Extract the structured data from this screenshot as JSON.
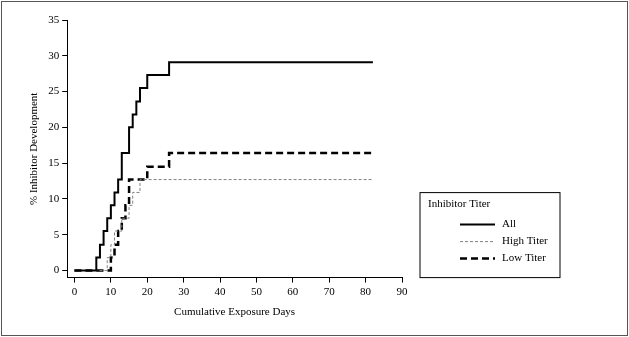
{
  "chart_data": {
    "type": "line",
    "x_label": "Cumulative Exposure Days",
    "y_label": "% Inhibitor Development",
    "xlim": [
      -2,
      90
    ],
    "xticks": [
      0,
      10,
      20,
      30,
      40,
      50,
      60,
      70,
      80,
      90
    ],
    "ylim": [
      -1,
      35
    ],
    "yticks": [
      0,
      5,
      10,
      15,
      20,
      25,
      30,
      35
    ],
    "grid": false,
    "legend": "lower right",
    "legend_title": "Inhibitor Titer",
    "series": [
      {
        "name": "All",
        "color": "#000000",
        "line_style": "solid",
        "x": [
          0,
          6,
          7,
          8,
          9,
          10,
          11,
          12,
          13,
          15,
          16,
          17,
          18,
          20,
          26,
          82
        ],
        "values": [
          0,
          1.8,
          3.6,
          5.5,
          7.3,
          9.1,
          10.9,
          12.7,
          16.4,
          20.0,
          21.8,
          23.6,
          25.5,
          27.3,
          29.1,
          29.1
        ]
      },
      {
        "name": "High Titer",
        "color": "#808080",
        "line_style": "dashed",
        "x": [
          0,
          9,
          10,
          11,
          13,
          15,
          16,
          18,
          82
        ],
        "values": [
          0,
          1.8,
          3.6,
          5.5,
          7.3,
          9.1,
          10.9,
          12.7,
          12.7
        ]
      },
      {
        "name": "Low Titer",
        "color": "#000000",
        "line_style": "long_dashed",
        "x": [
          0,
          10,
          11,
          12,
          13,
          14,
          15,
          20,
          26,
          82
        ],
        "values": [
          0,
          1.8,
          3.6,
          5.5,
          7.3,
          9.1,
          12.7,
          14.5,
          16.4,
          16.4
        ]
      }
    ]
  }
}
